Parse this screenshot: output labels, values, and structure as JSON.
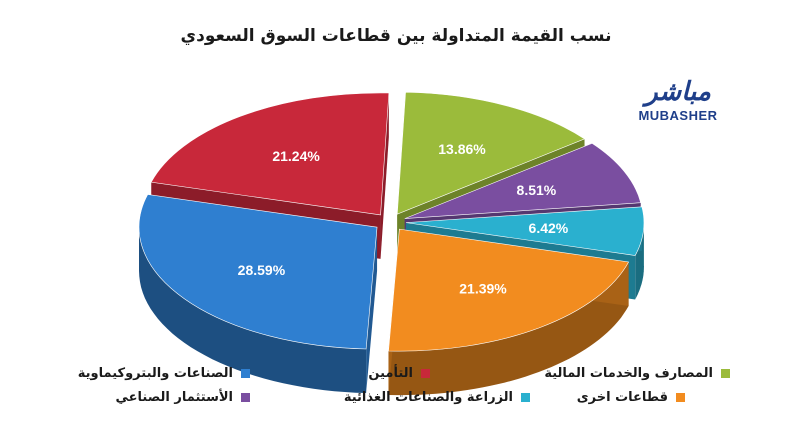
{
  "title": "نسب القيمة المتداولة بين قطاعات السوق السعودي",
  "logo": {
    "arabic": "مباشر",
    "english": "MUBASHER"
  },
  "chart_data": {
    "type": "pie",
    "title": "نسب القيمة المتداولة بين قطاعات السوق السعودي",
    "slices": [
      {
        "label": "المصارف والخدمات المالية",
        "value": 13.86,
        "display": "13.86%",
        "color": "#9bbb3b"
      },
      {
        "label": "الأستثمار الصناعي",
        "value": 8.51,
        "display": "8.51%",
        "color": "#7a4ea0"
      },
      {
        "label": "الزراعة والصناعات الغذائية",
        "value": 6.42,
        "display": "6.42%",
        "color": "#2ab0cf"
      },
      {
        "label": "قطاعات اخرى",
        "value": 21.39,
        "display": "21.39%",
        "color": "#f28c1f"
      },
      {
        "label": "الصناعات والبتروكيماوية",
        "value": 28.59,
        "display": "28.59%",
        "color": "#2f7fd0"
      },
      {
        "label": "التأمين",
        "value": 21.24,
        "display": "21.24%",
        "color": "#c8283a"
      }
    ],
    "legend_position": "bottom"
  },
  "legend": [
    {
      "label": "المصارف والخدمات المالية",
      "color": "#9bbb3b"
    },
    {
      "label": "التأمين",
      "color": "#c8283a"
    },
    {
      "label": "الصناعات والبتروكيماوية",
      "color": "#2f7fd0"
    },
    {
      "label": "قطاعات اخرى",
      "color": "#f28c1f"
    },
    {
      "label": "الزراعة والصناعات الغذائية",
      "color": "#2ab0cf"
    },
    {
      "label": "الأستثمار الصناعي",
      "color": "#7a4ea0"
    }
  ]
}
